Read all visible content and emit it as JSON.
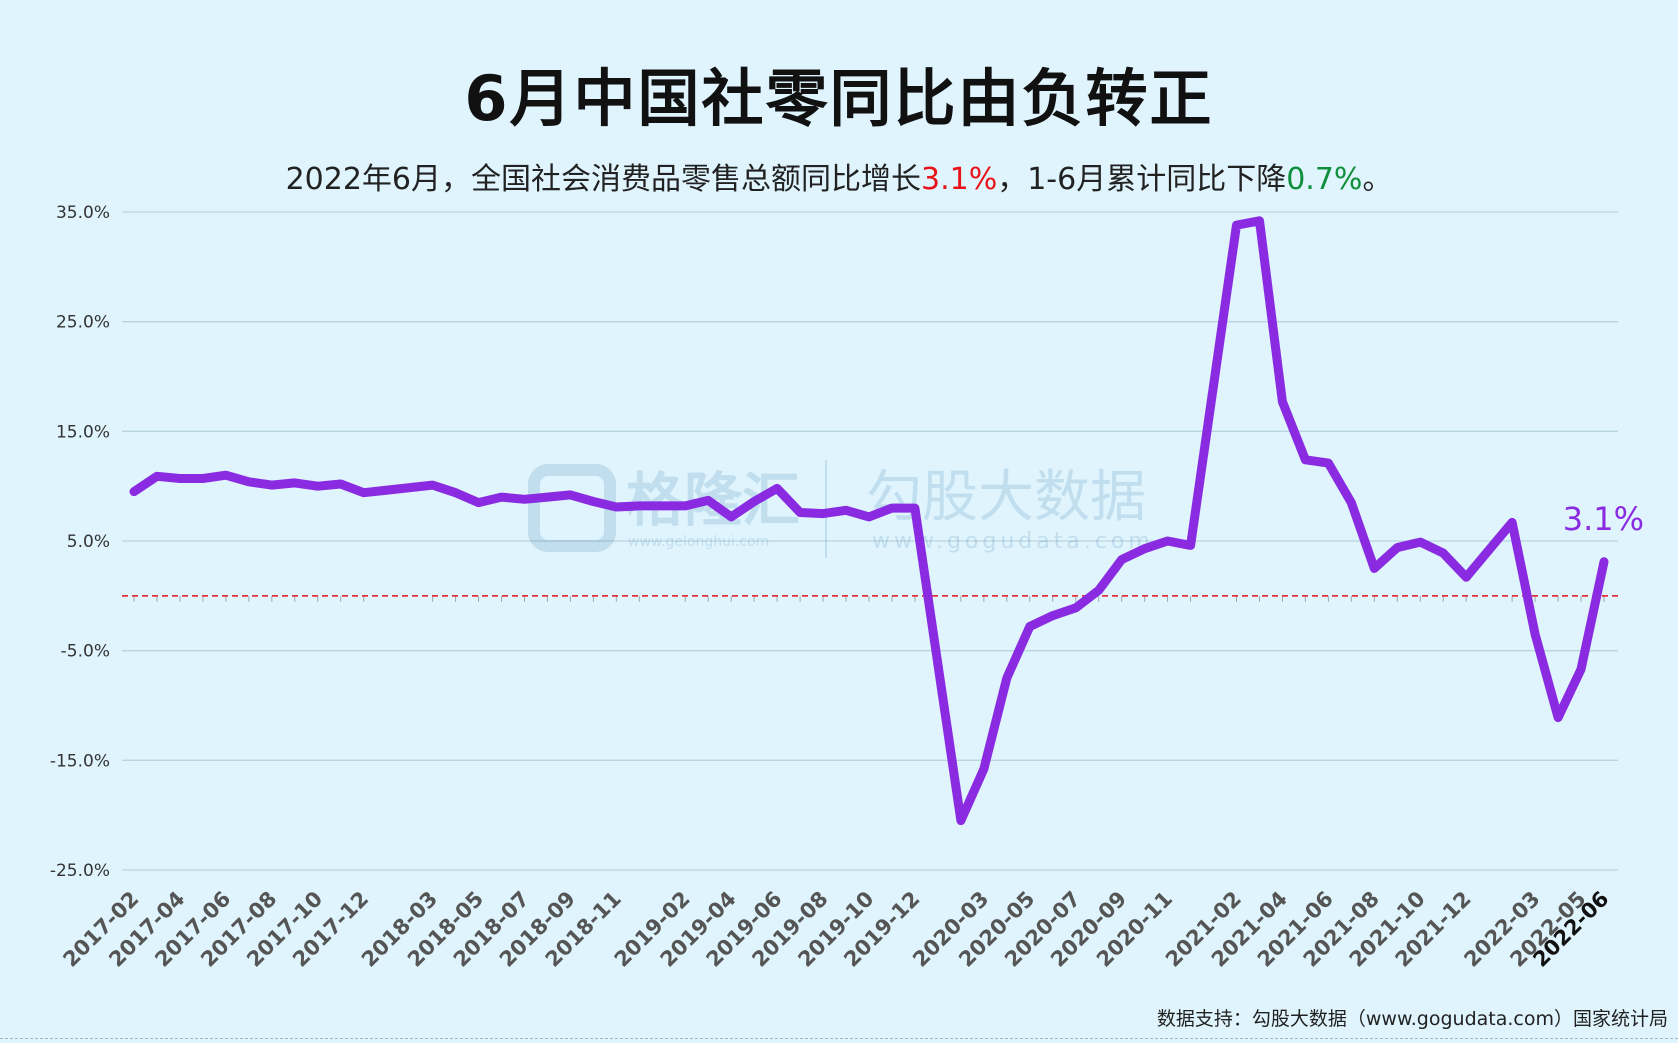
{
  "title": "6月中国社零同比由负转正",
  "subtitle": {
    "prefix": "2022年6月，全国社会消费品零售总额同比增长",
    "value1": "3.1%",
    "middle": "，1-6月累计同比下降",
    "value2": "0.7%",
    "suffix": "。"
  },
  "source": "数据支持：勾股大数据（www.gogudata.com）国家统计局",
  "watermark": {
    "brand1": "格隆汇",
    "brand1_url": "www.gelonghui.com",
    "brand2": "勾股大数据",
    "brand2_url": "www.gogudata.com"
  },
  "colors": {
    "line": "#8a2be2",
    "zero_line": "#e8141a",
    "grid": "#b9d3df",
    "axis_text": "#333333"
  },
  "chart_data": {
    "type": "line",
    "ylim": [
      -25,
      35
    ],
    "yticks": [
      35,
      25,
      15,
      5,
      -5,
      -15,
      -25
    ],
    "ytick_labels": [
      "35.0%",
      "25.0%",
      "15.0%",
      "5.0%",
      "-5.0%",
      "-15.0%",
      "-25.0%"
    ],
    "grid": true,
    "x_tick_labels": [
      "2017-02",
      "2017-04",
      "2017-06",
      "2017-08",
      "2017-10",
      "2017-12",
      "2018-03",
      "2018-05",
      "2018-07",
      "2018-09",
      "2018-11",
      "2019-02",
      "2019-04",
      "2019-06",
      "2019-08",
      "2019-10",
      "2019-12",
      "2020-03",
      "2020-05",
      "2020-07",
      "2020-09",
      "2020-11",
      "2021-02",
      "2021-04",
      "2021-06",
      "2021-08",
      "2021-10",
      "2021-12",
      "2022-03",
      "2022-05",
      "2022-06"
    ],
    "series": [
      {
        "name": "",
        "x": [
          "2017-02",
          "2017-03",
          "2017-04",
          "2017-05",
          "2017-06",
          "2017-07",
          "2017-08",
          "2017-09",
          "2017-10",
          "2017-11",
          "2017-12",
          "2018-03",
          "2018-04",
          "2018-05",
          "2018-06",
          "2018-07",
          "2018-08",
          "2018-09",
          "2018-10",
          "2018-11",
          "2018-12",
          "2019-02",
          "2019-03",
          "2019-04",
          "2019-05",
          "2019-06",
          "2019-07",
          "2019-08",
          "2019-09",
          "2019-10",
          "2019-11",
          "2019-12",
          "2020-02",
          "2020-03",
          "2020-04",
          "2020-05",
          "2020-06",
          "2020-07",
          "2020-08",
          "2020-09",
          "2020-10",
          "2020-11",
          "2020-12",
          "2021-02",
          "2021-03",
          "2021-04",
          "2021-05",
          "2021-06",
          "2021-07",
          "2021-08",
          "2021-09",
          "2021-10",
          "2021-11",
          "2021-12",
          "2022-02",
          "2022-03",
          "2022-04",
          "2022-05",
          "2022-06"
        ],
        "values": [
          9.5,
          10.9,
          10.7,
          10.7,
          11.0,
          10.4,
          10.1,
          10.3,
          10.0,
          10.2,
          9.4,
          10.1,
          9.4,
          8.5,
          9.0,
          8.8,
          9.0,
          9.2,
          8.6,
          8.1,
          8.2,
          8.2,
          8.7,
          7.2,
          8.6,
          9.8,
          7.6,
          7.5,
          7.8,
          7.2,
          8.0,
          8.0,
          -20.5,
          -15.8,
          -7.5,
          -2.8,
          -1.8,
          -1.1,
          0.5,
          3.3,
          4.3,
          5.0,
          4.6,
          33.8,
          34.2,
          17.7,
          12.4,
          12.1,
          8.5,
          2.5,
          4.4,
          4.9,
          3.9,
          1.7,
          6.7,
          -3.5,
          -11.1,
          -6.7,
          3.1
        ]
      }
    ],
    "annotations": [
      {
        "text": "3.1%",
        "x": "2022-06",
        "y": 3.1
      }
    ],
    "reference_line": {
      "y": 0,
      "style": "dashed"
    }
  }
}
